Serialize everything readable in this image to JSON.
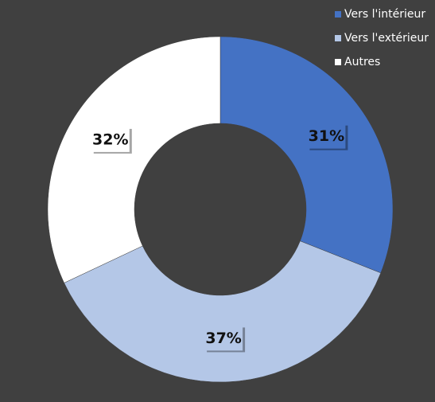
{
  "chart_data": {
    "type": "donut",
    "categories": [
      "Vers l'intérieur",
      "Vers l'extérieur",
      "Autres"
    ],
    "values": [
      31,
      37,
      32
    ],
    "value_labels": [
      "31%",
      "37%",
      "32%"
    ],
    "colors": [
      "#4472c4",
      "#b4c7e7",
      "#ffffff"
    ],
    "legend": "top-right"
  }
}
